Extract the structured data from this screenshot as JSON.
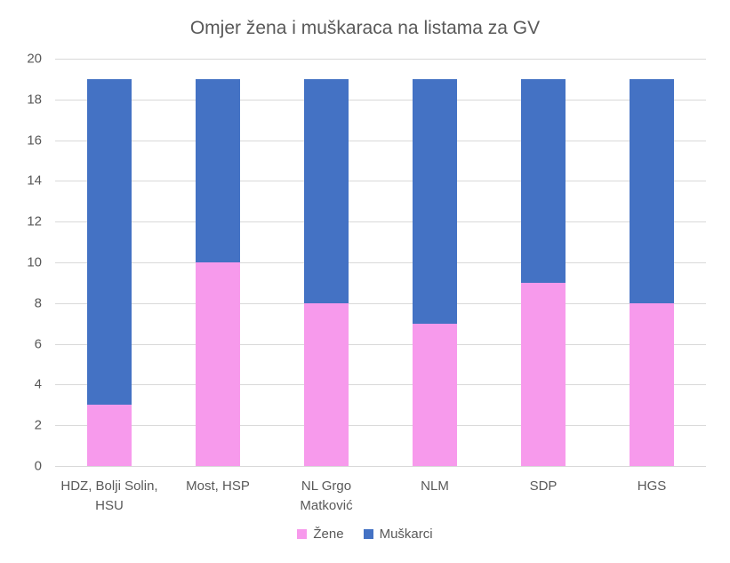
{
  "chart_data": {
    "type": "bar",
    "stacked": true,
    "title": "Omjer žena i muškaraca na listama za GV",
    "categories": [
      "HDZ, Bolji Solin, HSU",
      "Most, HSP",
      "NL Grgo Matković",
      "NLM",
      "SDP",
      "HGS"
    ],
    "series": [
      {
        "name": "Žene",
        "color": "#F79AEC",
        "values": [
          3,
          10,
          8,
          7,
          9,
          8
        ]
      },
      {
        "name": "Muškarci",
        "color": "#4472C4",
        "values": [
          16,
          9,
          11,
          12,
          10,
          11
        ]
      }
    ],
    "totals": [
      19,
      19,
      19,
      19,
      19,
      19
    ],
    "xlabel": "",
    "ylabel": "",
    "ylim": [
      0,
      20
    ],
    "ytick_step": 2,
    "grid": true,
    "legend_position": "bottom"
  },
  "colors": {
    "text": "#595959",
    "gridline": "#D9D9D9",
    "background": "#FFFFFF"
  }
}
